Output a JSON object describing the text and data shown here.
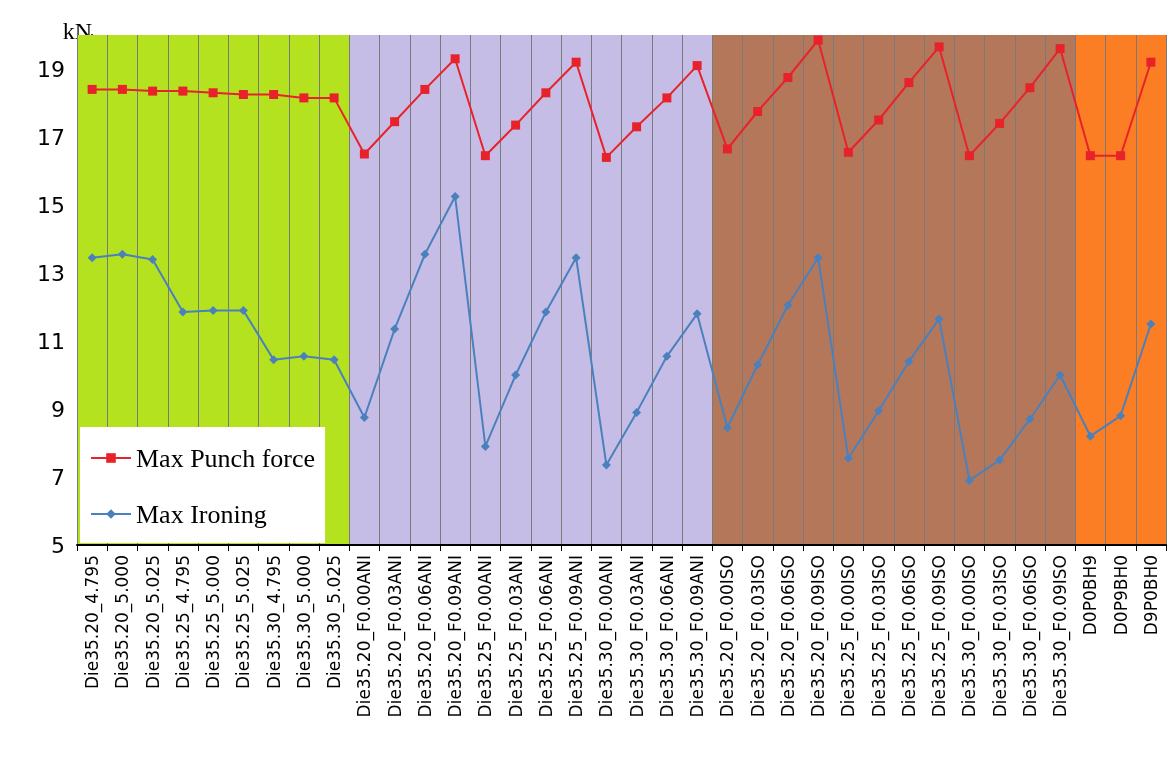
{
  "chart_data": {
    "type": "line",
    "ylabel": "kN",
    "categories": [
      "Die35.20_4.795",
      "Die35.20_5.000",
      "Die35.20_5.025",
      "Die35.25_4.795",
      "Die35.25_5.000",
      "Die35.25_5.025",
      "Die35.30_4.795",
      "Die35.30_5.000",
      "Die35.30_5.025",
      "Die35.20_F0.00ANI",
      "Die35.20_F0.03ANI",
      "Die35.20_F0.06ANI",
      "Die35.20_F0.09ANI",
      "Die35.25_F0.00ANI",
      "Die35.25_F0.03ANI",
      "Die35.25_F0.06ANI",
      "Die35.25_F0.09ANI",
      "Die35.30_F0.00ANI",
      "Die35.30_F0.03ANI",
      "Die35.30_F0.06ANI",
      "Die35.30_F0.09ANI",
      "Die35.20_F0.00ISO",
      "Die35.20_F0.03ISO",
      "Die35.20_F0.06ISO",
      "Die35.20_F0.09ISO",
      "Die35.25_F0.00ISO",
      "Die35.25_F0.03ISO",
      "Die35.25_F0.06ISO",
      "Die35.25_F0.09ISO",
      "Die35.30_F0.00ISO",
      "Die35.30_F0.03ISO",
      "Die35.30_F0.06ISO",
      "Die35.30_F0.09ISO",
      "D0P0BH9",
      "D0P9BH0",
      "D9P0BH0"
    ],
    "series": [
      {
        "name": "Max Punch force",
        "color": "#e8222a",
        "marker": "square",
        "values": [
          18.4,
          18.4,
          18.35,
          18.35,
          18.3,
          18.25,
          18.25,
          18.15,
          18.15,
          16.5,
          17.45,
          18.4,
          19.3,
          16.45,
          17.35,
          18.3,
          19.2,
          16.4,
          17.3,
          18.15,
          19.1,
          16.65,
          17.75,
          18.75,
          19.85,
          16.55,
          17.5,
          18.6,
          19.65,
          16.45,
          17.4,
          18.45,
          19.6,
          16.45,
          16.45,
          19.2
        ]
      },
      {
        "name": "Max Ironing",
        "color": "#4a81bd",
        "marker": "diamond",
        "values": [
          13.45,
          13.55,
          13.4,
          11.85,
          11.9,
          11.9,
          10.45,
          10.55,
          10.45,
          8.75,
          11.35,
          13.55,
          15.25,
          7.9,
          10.0,
          11.85,
          13.45,
          7.35,
          8.9,
          10.55,
          11.8,
          8.45,
          10.3,
          12.05,
          13.45,
          7.55,
          8.95,
          10.4,
          11.65,
          6.9,
          7.5,
          8.7,
          10.0,
          8.2,
          8.8,
          11.5
        ]
      }
    ],
    "ylim": [
      5,
      20
    ],
    "yticks": [
      5,
      7,
      9,
      11,
      13,
      15,
      17,
      19
    ],
    "grid": "x",
    "legend": "bottom left",
    "line_style": "solid",
    "bands": [
      {
        "axis": "x",
        "from": "Die35.20_4.795",
        "to": "Die35.30_5.025",
        "color": "#b5e21f"
      },
      {
        "axis": "x",
        "from": "Die35.20_F0.00ANI",
        "to": "Die35.30_F0.09ANI",
        "color": "#c6bde6"
      },
      {
        "axis": "x",
        "from": "Die35.20_F0.00ISO",
        "to": "Die35.30_F0.09ISO",
        "color": "#b5775a"
      },
      {
        "axis": "x",
        "from": "D0P0BH9",
        "to": "D9P0BH0",
        "color": "#fb7d24"
      }
    ]
  }
}
